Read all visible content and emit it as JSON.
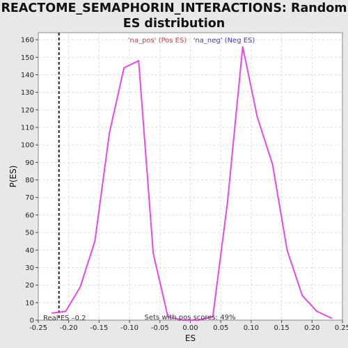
{
  "chart_data": {
    "type": "line",
    "title": "REACTOME_SEMAPHORIN_INTERACTIONS: Random ES distribution",
    "xlabel": "ES",
    "ylabel": "P(ES)",
    "xlim": [
      -0.25,
      0.25
    ],
    "ylim": [
      0,
      164
    ],
    "x_ticks": [
      "-0.25",
      "-0.20",
      "-0.15",
      "-0.10",
      "-0.05",
      "0.00",
      "0.05",
      "0.10",
      "0.15",
      "0.20",
      "0.25"
    ],
    "y_ticks": [
      "0",
      "10",
      "20",
      "30",
      "40",
      "50",
      "60",
      "70",
      "80",
      "90",
      "100",
      "110",
      "120",
      "130",
      "140",
      "150",
      "160"
    ],
    "grid": true,
    "legend": [
      {
        "label": "'na_pos' (Pos ES)",
        "color": "#e03c3c"
      },
      {
        "label": "'na_neg' (Neg ES)",
        "color": "#3c3cd2"
      }
    ],
    "series": [
      {
        "color": "#ee44ee",
        "x": [
          -0.228,
          -0.205,
          -0.181,
          -0.157,
          -0.133,
          -0.109,
          -0.085,
          -0.061,
          -0.037,
          -0.013,
          0.013,
          0.037,
          0.061,
          0.086,
          0.11,
          0.135,
          0.159,
          0.184,
          0.208,
          0.233
        ],
        "y": [
          4,
          5,
          19,
          45,
          107,
          144,
          148,
          38,
          2,
          0,
          0,
          2,
          67,
          156,
          116,
          89,
          40,
          14,
          5,
          1
        ]
      }
    ],
    "real_es": {
      "value": -0.216,
      "label": "Real ES –0.2"
    },
    "annotation": "Sets with pos scores: 49%"
  },
  "colors": {
    "line": "#ee44ee",
    "plot_bg": "#ffffff",
    "grid": "#dddddd"
  }
}
